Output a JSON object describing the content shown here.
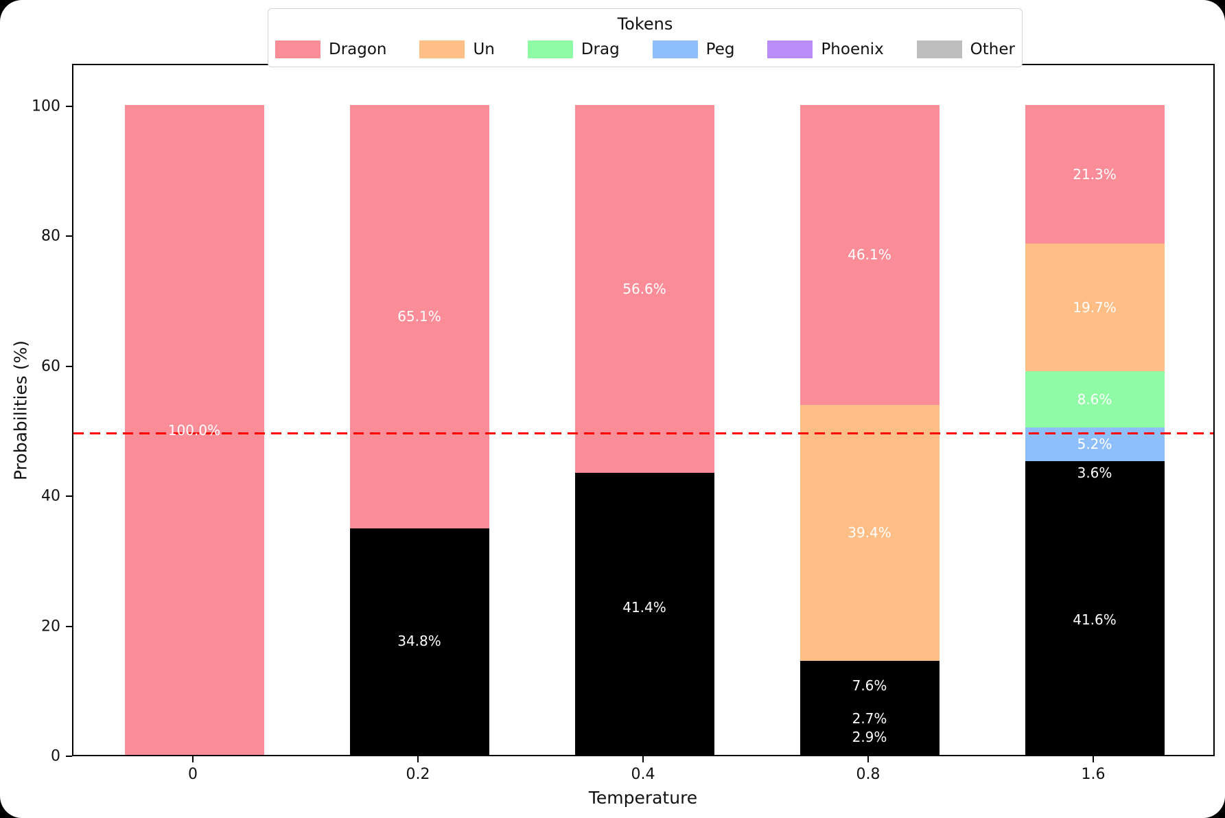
{
  "chart_data": {
    "type": "bar",
    "variant": "stacked-percentage",
    "title": "Tokens",
    "xlabel": "Temperature",
    "ylabel": "Probabilities (%)",
    "ylim": [
      0,
      100
    ],
    "yticks": [
      0,
      20,
      40,
      60,
      80,
      100
    ],
    "categories": [
      "0",
      "0.2",
      "0.4",
      "0.8",
      "1.6"
    ],
    "grid": false,
    "legend": {
      "title": "Tokens",
      "position": "top-center",
      "entries": [
        {
          "label": "Dragon",
          "color": "#fb8d98"
        },
        {
          "label": "Un",
          "color": "#ffbe85"
        },
        {
          "label": "Drag",
          "color": "#8ffba4"
        },
        {
          "label": "Peg",
          "color": "#8fbffb"
        },
        {
          "label": "Phoenix",
          "color": "#ba8df7"
        },
        {
          "label": "Other",
          "color": "#bdbdbd"
        }
      ]
    },
    "reference_line": {
      "value": 50,
      "color": "#ff0000",
      "style": "dashed"
    },
    "bars": [
      {
        "category": "0",
        "segments_bottom_to_top": [
          {
            "value": 100.0,
            "label": "100.0%",
            "color": "#fb8d98"
          }
        ]
      },
      {
        "category": "0.2",
        "segments_bottom_to_top": [
          {
            "value": 0.1,
            "label": "",
            "color": "#000000"
          },
          {
            "value": 34.8,
            "label": "34.8%",
            "color": "#000000"
          },
          {
            "value": 65.1,
            "label": "65.1%",
            "color": "#fb8d98"
          }
        ]
      },
      {
        "category": "0.4",
        "segments_bottom_to_top": [
          {
            "value": 2.0,
            "label": "",
            "color": "#000000"
          },
          {
            "value": 41.4,
            "label": "41.4%",
            "color": "#000000"
          },
          {
            "value": 56.6,
            "label": "56.6%",
            "color": "#fb8d98"
          }
        ]
      },
      {
        "category": "0.8",
        "segments_bottom_to_top": [
          {
            "value": 1.3,
            "label": "",
            "color": "#000000"
          },
          {
            "value": 2.9,
            "label": "2.9%",
            "color": "#000000"
          },
          {
            "value": 2.7,
            "label": "2.7%",
            "color": "#000000"
          },
          {
            "value": 7.6,
            "label": "7.6%",
            "color": "#000000"
          },
          {
            "value": 39.4,
            "label": "39.4%",
            "color": "#ffbe85"
          },
          {
            "value": 46.1,
            "label": "46.1%",
            "color": "#fb8d98"
          }
        ]
      },
      {
        "category": "1.6",
        "segments_bottom_to_top": [
          {
            "value": 41.6,
            "label": "41.6%",
            "color": "#000000"
          },
          {
            "value": 3.6,
            "label": "3.6%",
            "color": "#000000"
          },
          {
            "value": 5.2,
            "label": "5.2%",
            "color": "#8fbffb"
          },
          {
            "value": 8.6,
            "label": "8.6%",
            "color": "#8ffba4"
          },
          {
            "value": 19.7,
            "label": "19.7%",
            "color": "#ffbe85"
          },
          {
            "value": 21.3,
            "label": "21.3%",
            "color": "#fb8d98"
          }
        ]
      }
    ]
  }
}
